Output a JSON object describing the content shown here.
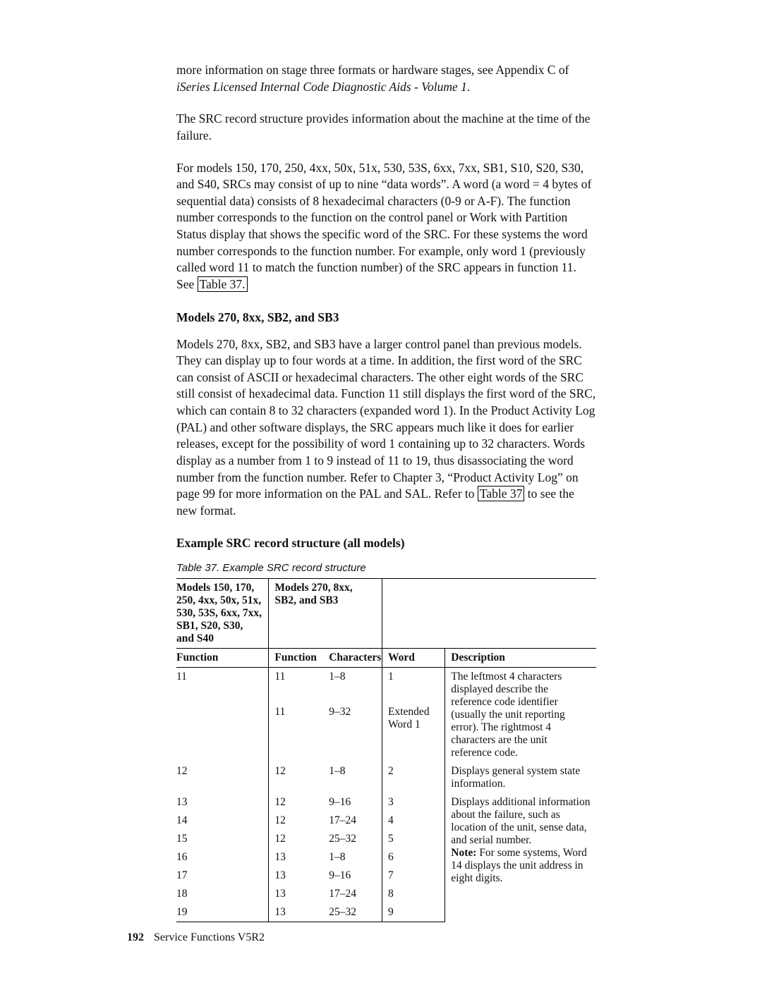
{
  "para1_a": "more information on stage three formats or hardware stages, see Appendix C of ",
  "para1_b": "iSeries Licensed Internal Code Diagnostic Aids - Volume 1",
  "para1_c": ".",
  "para2": "The SRC record structure provides information about the machine at the time of the failure.",
  "para3_a": "For models 150, 170, 250, 4xx, 50x, 51x, 530, 53S, 6xx, 7xx, SB1, S10, S20, S30, and S40, SRCs may consist of up to nine “data words”. A word (a word = 4 bytes of sequential data) consists of 8 hexadecimal characters (0-9 or A-F). The function number corresponds to the function on the control panel or Work with Partition Status display that shows the specific word of the SRC. For these systems the word number corresponds to the function number. For example, only word 1 (previously called word 11 to match the function number) of the SRC appears in function 11. See ",
  "para3_link": "Table 37.",
  "subhead1": "Models 270, 8xx, SB2, and SB3",
  "para4_a": "Models 270, 8xx, SB2, and SB3 have a larger control panel than previous models. They can display up to four words at a time. In addition, the first word of the SRC can consist of ASCII or hexadecimal characters. The other eight words of the SRC still consist of hexadecimal data. Function 11 still displays the first word of the SRC, which can contain 8 to 32 characters (expanded word 1). In the Product Activity Log (PAL) and other software displays, the SRC appears much like it does for earlier releases, except for the possibility of word 1 containing up to 32 characters. Words display as a number from 1 to 9 instead of 11 to 19, thus disassociating the word number from the function number. Refer to Chapter 3, “Product Activity Log” on page 99 for more information on the PAL and SAL. Refer to ",
  "para4_link": "Table 37",
  "para4_b": " to see the new format.",
  "subhead2": "Example SRC record structure (all models)",
  "caption": "Table 37. Example SRC record structure",
  "table": {
    "top_left": "Models 150, 170, 250, 4xx, 50x, 51x, 530, 53S, 6xx, 7xx, SB1, S20, S30, and S40",
    "top_mid": "Models 270, 8xx, SB2, and SB3",
    "headers": {
      "a": "Function",
      "b": "Function",
      "c": "Characters",
      "d": "Word",
      "e": "Description"
    },
    "r1": {
      "a": "11",
      "b": "11",
      "c": "1–8",
      "d": "1"
    },
    "r1b": {
      "b": "11",
      "c": "9–32",
      "d": "Extended Word 1"
    },
    "desc1": "The leftmost 4 characters displayed describe the reference code identifier (usually the unit reporting error). The rightmost 4 characters are the unit reference code.",
    "r2": {
      "a": "12",
      "b": "12",
      "c": "1–8",
      "d": "2"
    },
    "desc2": "Displays general system state information.",
    "r3": {
      "a": "13",
      "b": "12",
      "c": "9–16",
      "d": "3"
    },
    "r4": {
      "a": "14",
      "b": "12",
      "c": "17–24",
      "d": "4"
    },
    "r5": {
      "a": "15",
      "b": "12",
      "c": "25–32",
      "d": "5"
    },
    "r6": {
      "a": "16",
      "b": "13",
      "c": "1–8",
      "d": "6"
    },
    "r7": {
      "a": "17",
      "b": "13",
      "c": "9–16",
      "d": "7"
    },
    "r8": {
      "a": "18",
      "b": "13",
      "c": "17–24",
      "d": "8"
    },
    "r9": {
      "a": "19",
      "b": "13",
      "c": "25–32",
      "d": "9"
    },
    "desc3_a": "Displays additional information about the failure, such as location of the unit, sense data, and serial number.",
    "desc3_note_label": "Note:",
    "desc3_b": "  For some systems, Word 14 displays the unit address in eight digits."
  },
  "footer": {
    "page": "192",
    "title": "Service Functions V5R2"
  }
}
